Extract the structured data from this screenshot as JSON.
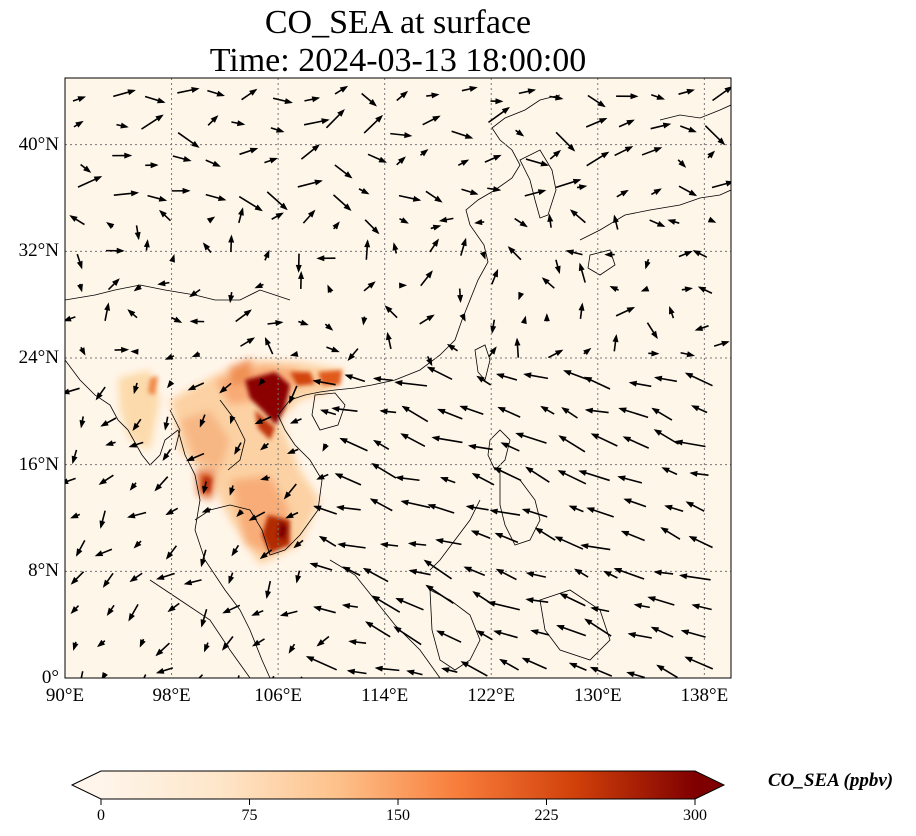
{
  "title": {
    "line1": "CO_SEA at surface",
    "line2": "Time: 2024-03-13 18:00:00"
  },
  "map": {
    "lon_range": [
      90,
      140
    ],
    "lat_range": [
      0,
      45
    ],
    "lon_ticks": [
      {
        "value": 90,
        "label": "90°E"
      },
      {
        "value": 98,
        "label": "98°E"
      },
      {
        "value": 106,
        "label": "106°E"
      },
      {
        "value": 114,
        "label": "114°E"
      },
      {
        "value": 122,
        "label": "122°E"
      },
      {
        "value": 130,
        "label": "130°E"
      },
      {
        "value": 138,
        "label": "138°E"
      }
    ],
    "lat_ticks": [
      {
        "value": 0,
        "label": "0°"
      },
      {
        "value": 8,
        "label": "8°N"
      },
      {
        "value": 16,
        "label": "16°N"
      },
      {
        "value": 24,
        "label": "24°N"
      },
      {
        "value": 32,
        "label": "32°N"
      },
      {
        "value": 40,
        "label": "40°N"
      }
    ],
    "gridlines": true,
    "background_color": "#fff6ea",
    "coastline_color": "#000000",
    "wind_arrow_color": "#000000"
  },
  "colorbar": {
    "label": "CO_SEA (ppbv)",
    "min": 0,
    "max": 300,
    "ticks": [
      {
        "value": 0,
        "label": "0"
      },
      {
        "value": 75,
        "label": "75"
      },
      {
        "value": 150,
        "label": "150"
      },
      {
        "value": 225,
        "label": "225"
      },
      {
        "value": 300,
        "label": "300"
      }
    ],
    "extend": "both",
    "colormap": [
      "#fff5eb",
      "#fdd4a3",
      "#fd9a55",
      "#e5561a",
      "#a82e05",
      "#7f0000"
    ]
  }
}
